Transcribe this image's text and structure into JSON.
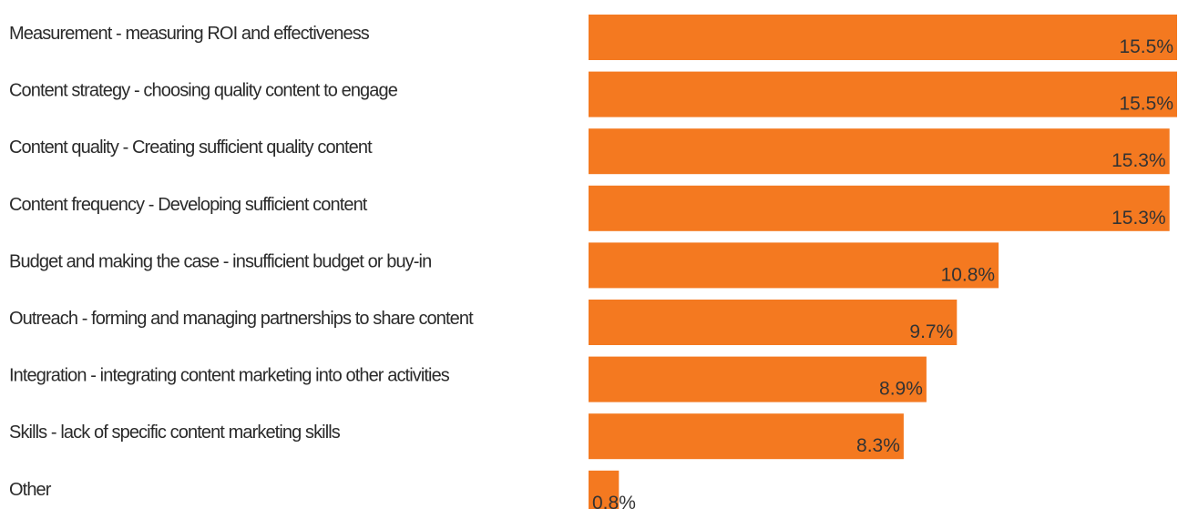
{
  "chart_data": {
    "type": "bar",
    "orientation": "horizontal",
    "categories": [
      "Measurement - measuring ROI and effectiveness",
      "Content strategy - choosing quality content to engage",
      "Content quality - Creating sufficient quality content",
      "Content frequency - Developing sufficient content",
      "Budget and making the case - insufficient budget or buy-in",
      "Outreach - forming and managing partnerships to share content",
      "Integration - integrating content marketing into other activities",
      "Skills - lack of specific content marketing skills",
      "Other"
    ],
    "values": [
      15.5,
      15.5,
      15.3,
      15.3,
      10.8,
      9.7,
      8.9,
      8.3,
      0.8
    ],
    "value_labels": [
      "15.5%",
      "15.5%",
      "15.3%",
      "15.3%",
      "10.8%",
      "9.7%",
      "8.9%",
      "8.3%",
      "0.8%"
    ],
    "xlim": [
      0,
      15.5
    ],
    "grid": false,
    "bar_color": "#f47920"
  }
}
